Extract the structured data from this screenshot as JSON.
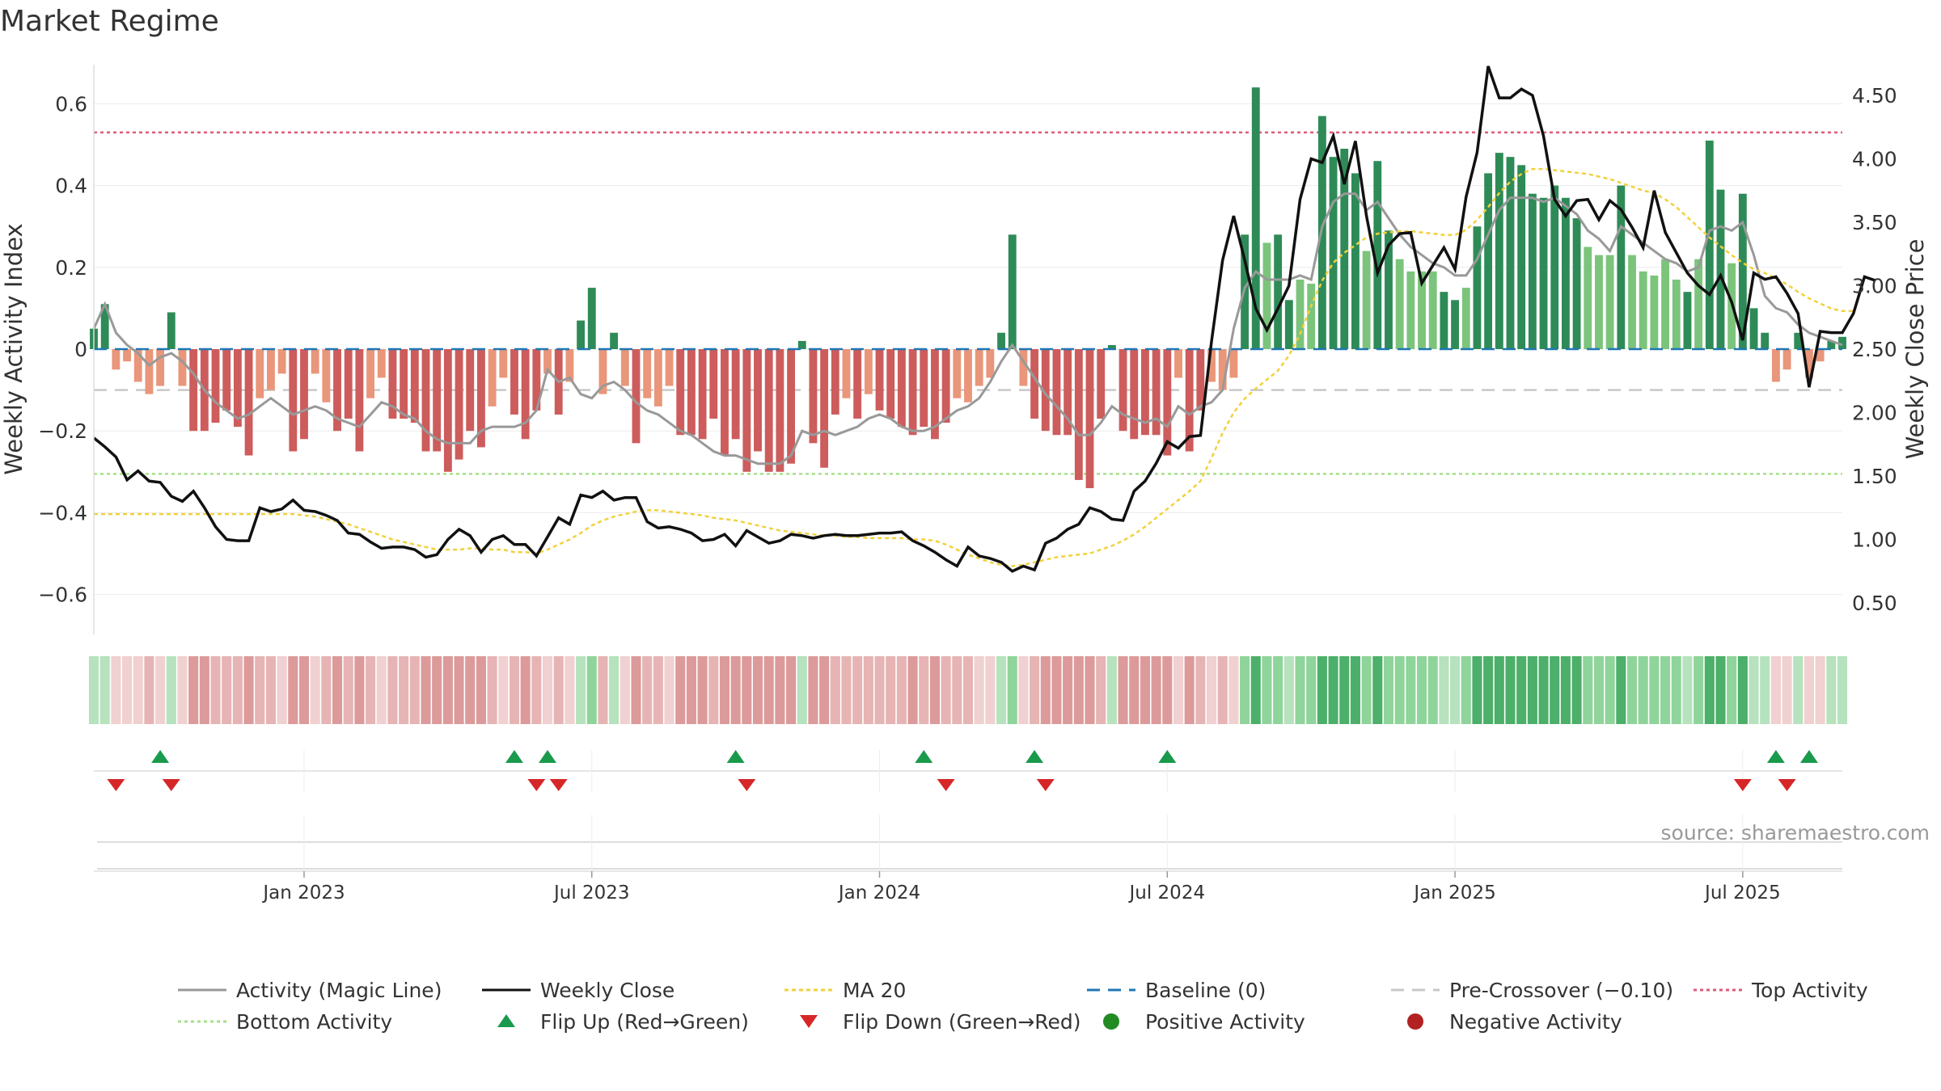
{
  "chart_data": {
    "type": "bar",
    "title": "Market Regime",
    "ylabel_left": "Weekly Activity Index",
    "ylabel_right": "Weekly Close Price",
    "source": "source: sharemaestro.com",
    "ylim_left": [
      -0.7,
      0.7
    ],
    "ylim_right": [
      0.3,
      4.8
    ],
    "yticks_left": [
      {
        "v": 0.6,
        "label": "0.6"
      },
      {
        "v": 0.4,
        "label": "0.4"
      },
      {
        "v": 0.2,
        "label": "0.2"
      },
      {
        "v": 0,
        "label": "0"
      },
      {
        "v": -0.2,
        "label": "−0.2"
      },
      {
        "v": -0.4,
        "label": "−0.4"
      },
      {
        "v": -0.6,
        "label": "−0.6"
      }
    ],
    "yticks_right": [
      {
        "v": 4.5,
        "label": "4.50"
      },
      {
        "v": 4.0,
        "label": "4.00"
      },
      {
        "v": 3.5,
        "label": "3.50"
      },
      {
        "v": 3.0,
        "label": "3.00"
      },
      {
        "v": 2.5,
        "label": "2.50"
      },
      {
        "v": 2.0,
        "label": "2.00"
      },
      {
        "v": 1.5,
        "label": "1.50"
      },
      {
        "v": 1.0,
        "label": "1.00"
      },
      {
        "v": 0.5,
        "label": "0.50"
      }
    ],
    "xticks": [
      {
        "week": 19,
        "label": "Jan 2023"
      },
      {
        "week": 45,
        "label": "Jul 2023"
      },
      {
        "week": 71,
        "label": "Jan 2024"
      },
      {
        "week": 97,
        "label": "Jul 2024"
      },
      {
        "week": 123,
        "label": "Jan 2025"
      },
      {
        "week": 149,
        "label": "Jul 2025"
      }
    ],
    "reference_lines": {
      "baseline": 0,
      "pre_crossover": -0.1,
      "top_activity": 0.53,
      "bottom_activity": -0.305
    },
    "activity": [
      0.05,
      0.11,
      -0.05,
      -0.03,
      -0.08,
      -0.11,
      -0.09,
      0.09,
      -0.09,
      -0.2,
      -0.2,
      -0.18,
      -0.15,
      -0.19,
      -0.26,
      -0.12,
      -0.1,
      -0.06,
      -0.25,
      -0.22,
      -0.06,
      -0.13,
      -0.2,
      -0.17,
      -0.25,
      -0.12,
      -0.07,
      -0.17,
      -0.17,
      -0.18,
      -0.25,
      -0.25,
      -0.3,
      -0.27,
      -0.2,
      -0.24,
      -0.14,
      -0.07,
      -0.16,
      -0.22,
      -0.15,
      -0.06,
      -0.16,
      -0.08,
      0.07,
      0.15,
      -0.11,
      0.04,
      -0.09,
      -0.23,
      -0.12,
      -0.14,
      -0.09,
      -0.21,
      -0.21,
      -0.22,
      -0.17,
      -0.26,
      -0.22,
      -0.3,
      -0.25,
      -0.3,
      -0.3,
      -0.28,
      0.02,
      -0.23,
      -0.29,
      -0.16,
      -0.12,
      -0.17,
      -0.11,
      -0.15,
      -0.17,
      -0.19,
      -0.21,
      -0.19,
      -0.22,
      -0.18,
      -0.12,
      -0.13,
      -0.09,
      -0.07,
      0.04,
      0.28,
      -0.09,
      -0.17,
      -0.2,
      -0.21,
      -0.21,
      -0.32,
      -0.34,
      -0.17,
      0.01,
      -0.2,
      -0.22,
      -0.21,
      -0.21,
      -0.26,
      -0.07,
      -0.25,
      -0.15,
      -0.08,
      -0.1,
      -0.07,
      0.28,
      0.64,
      0.26,
      0.28,
      0.12,
      0.17,
      0.16,
      0.57,
      0.47,
      0.49,
      0.43,
      0.24,
      0.46,
      0.29,
      0.22,
      0.19,
      0.19,
      0.19,
      0.14,
      0.12,
      0.15,
      0.3,
      0.43,
      0.48,
      0.47,
      0.45,
      0.38,
      0.37,
      0.4,
      0.37,
      0.32,
      0.25,
      0.23,
      0.23,
      0.4,
      0.23,
      0.19,
      0.18,
      0.22,
      0.17,
      0.14,
      0.22,
      0.51,
      0.39,
      0.21,
      0.38,
      0.1,
      0.04,
      -0.08,
      -0.05,
      0.04,
      -0.07,
      -0.03,
      0.02,
      0.03
    ],
    "magic_line": [
      0.05,
      0.11,
      0.04,
      0.01,
      -0.01,
      -0.04,
      -0.02,
      -0.01,
      -0.03,
      -0.06,
      -0.1,
      -0.13,
      -0.15,
      -0.17,
      -0.16,
      -0.14,
      -0.12,
      -0.14,
      -0.16,
      -0.15,
      -0.14,
      -0.15,
      -0.17,
      -0.18,
      -0.19,
      -0.16,
      -0.13,
      -0.14,
      -0.16,
      -0.17,
      -0.2,
      -0.22,
      -0.23,
      -0.23,
      -0.23,
      -0.2,
      -0.19,
      -0.19,
      -0.19,
      -0.18,
      -0.15,
      -0.05,
      -0.08,
      -0.07,
      -0.11,
      -0.12,
      -0.09,
      -0.08,
      -0.1,
      -0.13,
      -0.15,
      -0.16,
      -0.18,
      -0.2,
      -0.21,
      -0.23,
      -0.25,
      -0.26,
      -0.26,
      -0.27,
      -0.28,
      -0.28,
      -0.28,
      -0.26,
      -0.2,
      -0.21,
      -0.2,
      -0.21,
      -0.2,
      -0.19,
      -0.17,
      -0.16,
      -0.17,
      -0.19,
      -0.2,
      -0.2,
      -0.19,
      -0.17,
      -0.15,
      -0.14,
      -0.12,
      -0.08,
      -0.03,
      0.01,
      -0.03,
      -0.07,
      -0.11,
      -0.14,
      -0.17,
      -0.21,
      -0.21,
      -0.18,
      -0.14,
      -0.16,
      -0.17,
      -0.18,
      -0.17,
      -0.19,
      -0.14,
      -0.16,
      -0.14,
      -0.13,
      -0.1,
      0.05,
      0.15,
      0.19,
      0.17,
      0.17,
      0.17,
      0.18,
      0.17,
      0.3,
      0.36,
      0.38,
      0.38,
      0.34,
      0.36,
      0.32,
      0.28,
      0.25,
      0.23,
      0.21,
      0.2,
      0.18,
      0.18,
      0.22,
      0.28,
      0.34,
      0.37,
      0.37,
      0.37,
      0.36,
      0.37,
      0.35,
      0.33,
      0.29,
      0.27,
      0.24,
      0.3,
      0.28,
      0.26,
      0.24,
      0.22,
      0.21,
      0.19,
      0.2,
      0.29,
      0.3,
      0.29,
      0.31,
      0.23,
      0.13,
      0.1,
      0.09,
      0.06,
      0.04,
      0.03,
      0.02,
      0.01
    ],
    "weekly_close": [
      1.8,
      1.73,
      1.65,
      1.47,
      1.54,
      1.46,
      1.45,
      1.34,
      1.3,
      1.38,
      1.25,
      1.1,
      1.0,
      0.99,
      0.99,
      1.25,
      1.22,
      1.24,
      1.31,
      1.23,
      1.22,
      1.19,
      1.15,
      1.05,
      1.04,
      0.98,
      0.93,
      0.94,
      0.94,
      0.92,
      0.86,
      0.88,
      1.0,
      1.08,
      1.03,
      0.9,
      1.0,
      1.03,
      0.96,
      0.96,
      0.87,
      1.02,
      1.17,
      1.12,
      1.35,
      1.33,
      1.38,
      1.31,
      1.33,
      1.33,
      1.14,
      1.09,
      1.1,
      1.08,
      1.05,
      0.99,
      1.0,
      1.04,
      0.95,
      1.07,
      1.02,
      0.97,
      0.99,
      1.04,
      1.03,
      1.01,
      1.03,
      1.04,
      1.03,
      1.03,
      1.04,
      1.05,
      1.05,
      1.06,
      0.99,
      0.95,
      0.9,
      0.84,
      0.79,
      0.94,
      0.87,
      0.85,
      0.82,
      0.75,
      0.79,
      0.76,
      0.97,
      1.01,
      1.08,
      1.12,
      1.25,
      1.22,
      1.16,
      1.15,
      1.38,
      1.46,
      1.6,
      1.77,
      1.72,
      1.81,
      1.82,
      2.56,
      3.2,
      3.55,
      3.2,
      2.82,
      2.65,
      2.82,
      3.0,
      3.68,
      4.0,
      3.97,
      4.18,
      3.8,
      4.14,
      3.55,
      3.1,
      3.32,
      3.41,
      3.42,
      3.02,
      3.16,
      3.3,
      3.13,
      3.7,
      4.05,
      4.73,
      4.48,
      4.48,
      4.55,
      4.5,
      4.18,
      3.68,
      3.55,
      3.67,
      3.68,
      3.52,
      3.67,
      3.6,
      3.46,
      3.3,
      3.75,
      3.42,
      3.26,
      3.1,
      3.0,
      2.93,
      3.08,
      2.87,
      2.57,
      3.1,
      3.05,
      3.07,
      2.94,
      2.78,
      2.2,
      2.64,
      2.63,
      2.63,
      2.78,
      3.07,
      3.04
    ],
    "ma20": [
      1.2,
      1.2,
      1.2,
      1.2,
      1.2,
      1.2,
      1.2,
      1.2,
      1.2,
      1.2,
      1.2,
      1.2,
      1.2,
      1.2,
      1.2,
      1.2,
      1.2,
      1.2,
      1.2,
      1.19,
      1.18,
      1.16,
      1.14,
      1.12,
      1.09,
      1.06,
      1.03,
      1.0,
      0.98,
      0.96,
      0.94,
      0.92,
      0.92,
      0.92,
      0.93,
      0.93,
      0.92,
      0.92,
      0.9,
      0.9,
      0.89,
      0.92,
      0.96,
      1.0,
      1.05,
      1.11,
      1.15,
      1.18,
      1.2,
      1.22,
      1.23,
      1.23,
      1.22,
      1.21,
      1.2,
      1.19,
      1.17,
      1.16,
      1.15,
      1.13,
      1.11,
      1.09,
      1.07,
      1.06,
      1.05,
      1.04,
      1.03,
      1.03,
      1.02,
      1.02,
      1.01,
      1.01,
      1.01,
      1.01,
      1.0,
      1.0,
      0.99,
      0.96,
      0.92,
      0.88,
      0.85,
      0.82,
      0.8,
      0.79,
      0.8,
      0.82,
      0.84,
      0.86,
      0.87,
      0.88,
      0.89,
      0.92,
      0.95,
      0.99,
      1.04,
      1.1,
      1.17,
      1.24,
      1.31,
      1.38,
      1.46,
      1.64,
      1.84,
      2.0,
      2.11,
      2.19,
      2.26,
      2.33,
      2.45,
      2.62,
      2.84,
      3.04,
      3.18,
      3.26,
      3.32,
      3.38,
      3.41,
      3.42,
      3.43,
      3.43,
      3.42,
      3.41,
      3.4,
      3.4,
      3.44,
      3.52,
      3.62,
      3.73,
      3.82,
      3.88,
      3.92,
      3.92,
      3.91,
      3.9,
      3.89,
      3.88,
      3.86,
      3.84,
      3.81,
      3.78,
      3.75,
      3.73,
      3.68,
      3.62,
      3.54,
      3.46,
      3.38,
      3.31,
      3.24,
      3.18,
      3.13,
      3.1,
      3.06,
      3.01,
      2.95,
      2.9,
      2.86,
      2.82,
      2.8,
      2.8
    ],
    "flip_up_weeks": [
      6,
      38,
      41,
      58,
      75,
      85,
      97,
      152,
      155
    ],
    "flip_down_weeks": [
      2,
      7,
      40,
      42,
      59,
      77,
      86,
      149,
      153
    ],
    "legend": {
      "row1": [
        "Activity (Magic Line)",
        "Weekly Close",
        "MA 20",
        "Baseline (0)",
        "Pre-Crossover (−0.10)",
        "Top Activity"
      ],
      "row2": [
        "Bottom Activity",
        "Flip Up (Red→Green)",
        "Flip Down (Green→Red)",
        "Positive Activity",
        "Negative Activity"
      ]
    },
    "colors": {
      "pos_strong": "#2e8b57",
      "pos_light": "#7cc47c",
      "neg_strong": "#cd5c5c",
      "neg_light": "#e9967a",
      "magic_line": "#999999",
      "close": "#111111",
      "ma20": "#f2d13b",
      "baseline": "#1f77b4",
      "pre_crossover": "#c8c8c8",
      "top_activity": "#e05a78",
      "bottom_activity": "#a6e08a",
      "flip_up": "#1a9a4c",
      "flip_down": "#d62728",
      "pos_dot": "#228b22",
      "neg_dot": "#b22222"
    }
  }
}
